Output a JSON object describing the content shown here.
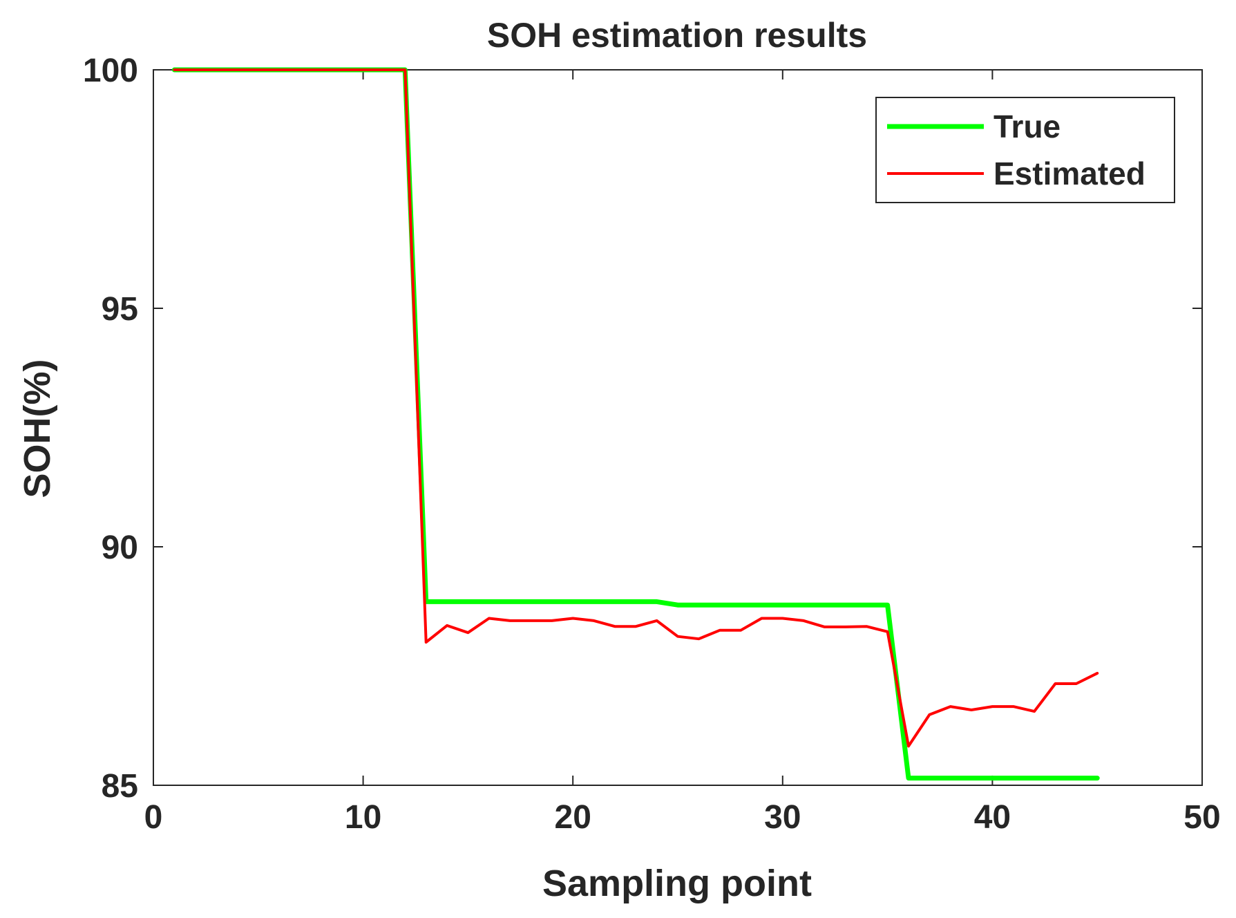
{
  "chart_data": {
    "type": "line",
    "title": "SOH estimation results",
    "xlabel": "Sampling point",
    "ylabel": "SOH(%)",
    "xlim": [
      0,
      50
    ],
    "ylim": [
      85,
      100
    ],
    "xticks": [
      "0",
      "10",
      "20",
      "30",
      "40",
      "50"
    ],
    "yticks": [
      "85",
      "90",
      "95",
      "100"
    ],
    "grid": false,
    "legend_position": "top-right",
    "series": [
      {
        "name": "True",
        "color": "#00ff00",
        "style": "thick",
        "x": [
          1,
          2,
          3,
          4,
          5,
          6,
          7,
          8,
          9,
          10,
          11,
          12,
          13,
          14,
          15,
          16,
          17,
          18,
          19,
          20,
          21,
          22,
          23,
          24,
          25,
          26,
          27,
          28,
          29,
          30,
          31,
          32,
          33,
          34,
          35,
          36,
          37,
          38,
          39,
          40,
          41,
          42,
          43,
          44,
          45
        ],
        "values": [
          100,
          100,
          100,
          100,
          100,
          100,
          100,
          100,
          100,
          100,
          100,
          100,
          88.85,
          88.85,
          88.85,
          88.85,
          88.85,
          88.85,
          88.85,
          88.85,
          88.85,
          88.85,
          88.85,
          88.85,
          88.78,
          88.78,
          88.78,
          88.78,
          88.78,
          88.78,
          88.78,
          88.78,
          88.78,
          88.78,
          88.78,
          85.15,
          85.15,
          85.15,
          85.15,
          85.15,
          85.15,
          85.15,
          85.15,
          85.15,
          85.15
        ]
      },
      {
        "name": "Estimated",
        "color": "#ff0000",
        "style": "thin",
        "x": [
          1,
          2,
          3,
          4,
          5,
          6,
          7,
          8,
          9,
          10,
          11,
          12,
          13,
          14,
          15,
          16,
          17,
          18,
          19,
          20,
          21,
          22,
          23,
          24,
          25,
          26,
          27,
          28,
          29,
          30,
          31,
          32,
          33,
          34,
          35,
          36,
          37,
          38,
          39,
          40,
          41,
          42,
          43,
          44,
          45
        ],
        "values": [
          100,
          100,
          100,
          100,
          100,
          100,
          100,
          100,
          100,
          100,
          100,
          100,
          88.0,
          88.35,
          88.2,
          88.5,
          88.45,
          88.45,
          88.45,
          88.5,
          88.45,
          88.33,
          88.33,
          88.45,
          88.12,
          88.07,
          88.25,
          88.25,
          88.5,
          88.5,
          88.45,
          88.32,
          88.32,
          88.33,
          88.22,
          85.82,
          86.48,
          86.65,
          86.58,
          86.65,
          86.65,
          86.55,
          87.13,
          87.13,
          87.35
        ]
      }
    ]
  }
}
